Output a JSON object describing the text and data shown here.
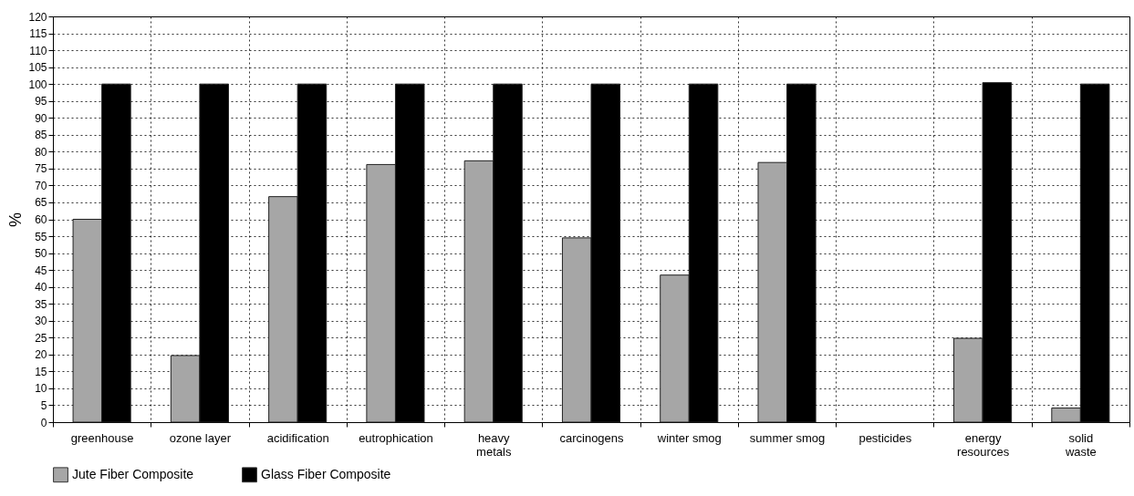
{
  "chart_data": {
    "type": "bar",
    "ylabel": "%",
    "categories": [
      "greenhouse",
      "ozone layer",
      "acidification",
      "eutrophication",
      "heavy\nmetals",
      "carcinogens",
      "winter smog",
      "summer smog",
      "pesticides",
      "energy\nresources",
      "solid\nwaste"
    ],
    "series": [
      {
        "name": "Jute Fiber Composite",
        "color": "#a6a6a6",
        "values": [
          60,
          19.7,
          66.7,
          76.2,
          77.3,
          54.5,
          43.5,
          76.8,
          0,
          24.8,
          4.2
        ]
      },
      {
        "name": "Glass Fiber Composite",
        "color": "#000000",
        "values": [
          100,
          100,
          100,
          100,
          100,
          100,
          100,
          100,
          0,
          100.4,
          100
        ]
      }
    ],
    "ylim": [
      0,
      120
    ],
    "yticks": [
      0,
      5,
      10,
      15,
      20,
      25,
      30,
      35,
      40,
      45,
      50,
      55,
      60,
      65,
      70,
      75,
      80,
      85,
      90,
      95,
      100,
      105,
      110,
      115,
      120
    ],
    "grid": true,
    "legend": "bottom"
  }
}
